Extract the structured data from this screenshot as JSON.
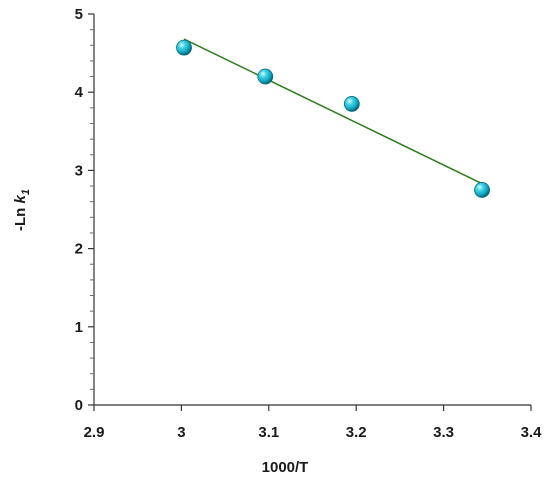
{
  "chart_data": {
    "type": "scatter",
    "xlabel": "1000/T",
    "ylabel_prefix": "-Ln ",
    "ylabel_var": "k",
    "ylabel_sub": "1",
    "xlim": [
      2.9,
      3.4
    ],
    "ylim": [
      0,
      5
    ],
    "x_ticks": [
      2.9,
      3,
      3.1,
      3.2,
      3.3,
      3.4
    ],
    "x_tick_labels": [
      "2.9",
      "3",
      "3.1",
      "3.2",
      "3.3",
      "3.4"
    ],
    "y_ticks": [
      0,
      1,
      2,
      3,
      4,
      5
    ],
    "y_tick_labels": [
      "0",
      "1",
      "2",
      "3",
      "4",
      "5"
    ],
    "grid": false,
    "series": [
      {
        "x": [
          3.003,
          3.096,
          3.195,
          3.344
        ],
        "y": [
          4.57,
          4.2,
          3.85,
          2.75
        ],
        "color": "#1fc4d8"
      }
    ],
    "fit_line": {
      "x": [
        3.003,
        3.344
      ],
      "y": [
        4.68,
        2.83
      ],
      "color": "#2e7d1f"
    }
  }
}
